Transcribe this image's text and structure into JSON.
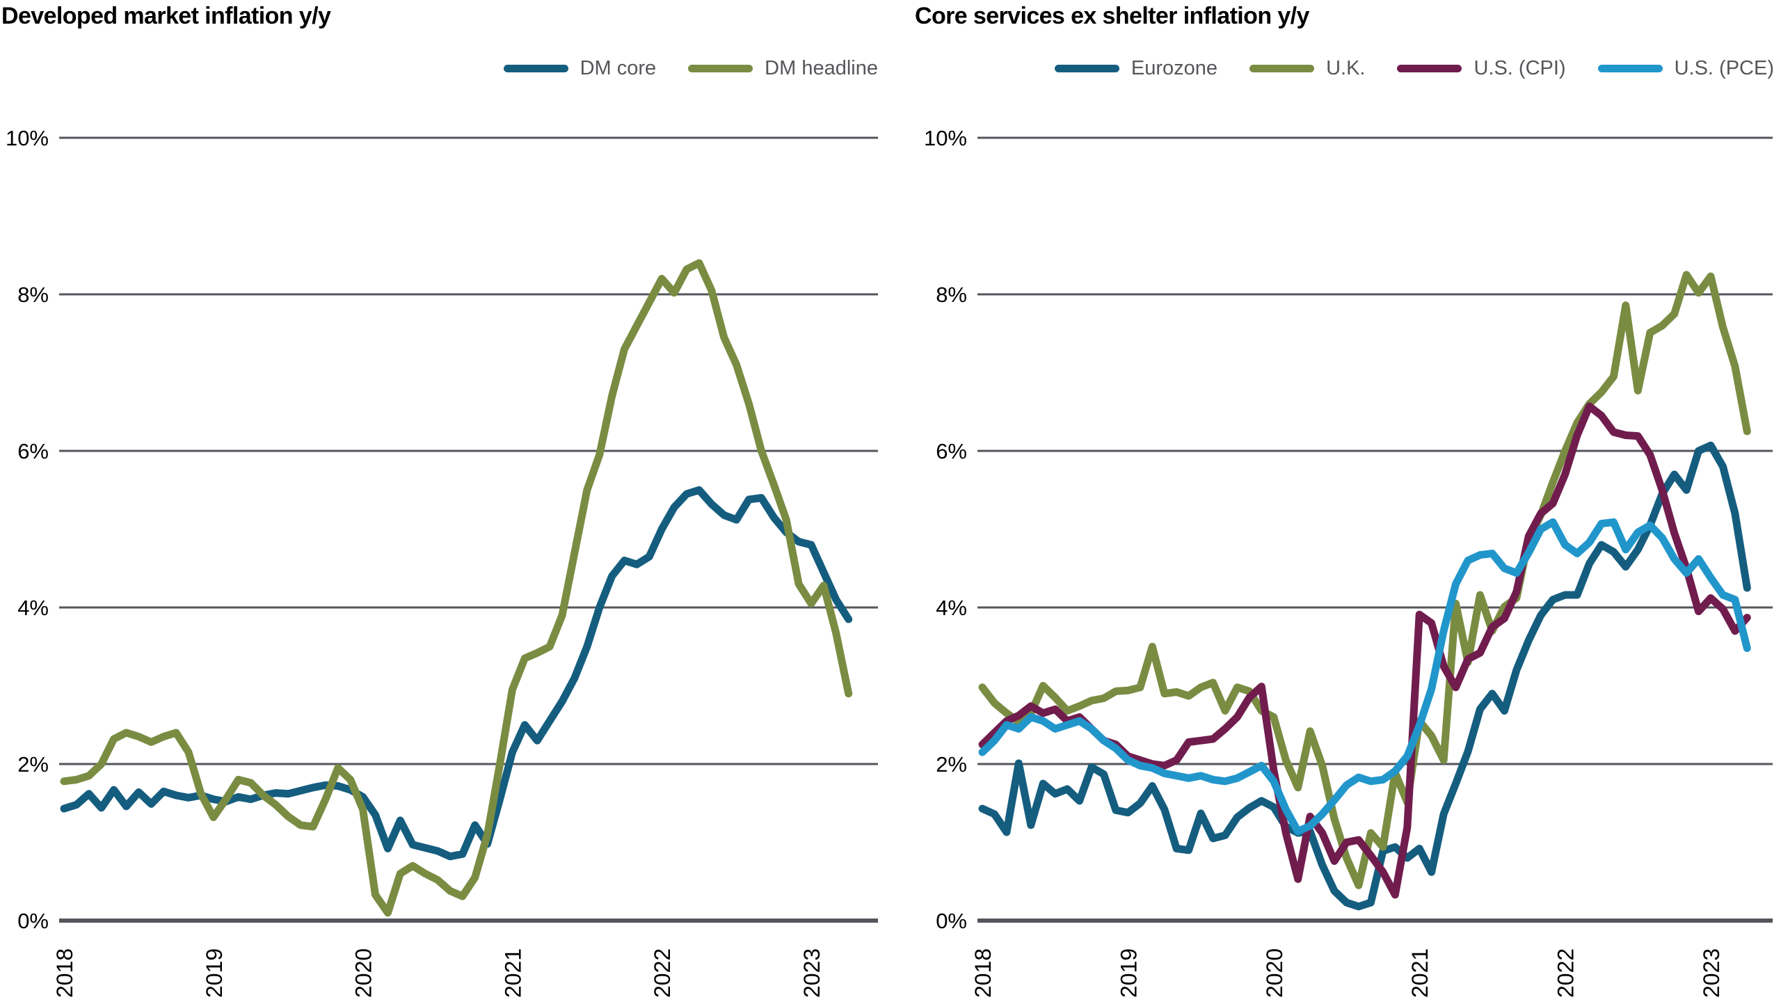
{
  "page_background": "#ffffff",
  "grid_color": "#54565c",
  "text_color": "#000000",
  "legend_text_color": "#54565a",
  "chart_data": [
    {
      "type": "line",
      "title": "Developed market inflation y/y",
      "frequency": "monthly",
      "x_start": "2018-01",
      "x_end": "2023-04",
      "xlabel": "",
      "ylabel": "",
      "ylim": [
        0,
        10
      ],
      "grid": "horizontal",
      "legend_position": "top-right",
      "y_ticks": [
        {
          "value": 0,
          "label": "0%"
        },
        {
          "value": 2,
          "label": "2%"
        },
        {
          "value": 4,
          "label": "4%"
        },
        {
          "value": 6,
          "label": "6%"
        },
        {
          "value": 8,
          "label": "8%"
        },
        {
          "value": 10,
          "label": "10%"
        }
      ],
      "x_ticks": [
        "2018",
        "2019",
        "2020",
        "2021",
        "2022",
        "2023"
      ],
      "series": [
        {
          "name": "DM core",
          "color": "#155d7f",
          "values": [
            1.43,
            1.48,
            1.62,
            1.44,
            1.67,
            1.46,
            1.64,
            1.49,
            1.65,
            1.6,
            1.57,
            1.6,
            1.55,
            1.52,
            1.58,
            1.55,
            1.6,
            1.63,
            1.62,
            1.66,
            1.7,
            1.73,
            1.72,
            1.67,
            1.58,
            1.35,
            0.92,
            1.28,
            0.97,
            0.93,
            0.89,
            0.82,
            0.85,
            1.22,
            0.98,
            1.55,
            2.15,
            2.5,
            2.3,
            2.55,
            2.8,
            3.1,
            3.5,
            4.0,
            4.4,
            4.6,
            4.55,
            4.65,
            5.0,
            5.28,
            5.45,
            5.5,
            5.32,
            5.18,
            5.12,
            5.38,
            5.4,
            5.15,
            4.96,
            4.84,
            4.8,
            4.45,
            4.1,
            3.85
          ]
        },
        {
          "name": "DM headline",
          "color": "#7a8c42",
          "values": [
            1.78,
            1.8,
            1.85,
            2.0,
            2.32,
            2.4,
            2.35,
            2.28,
            2.35,
            2.4,
            2.15,
            1.62,
            1.32,
            1.55,
            1.8,
            1.76,
            1.6,
            1.48,
            1.33,
            1.22,
            1.2,
            1.55,
            1.95,
            1.8,
            1.42,
            0.33,
            0.1,
            0.6,
            0.7,
            0.6,
            0.52,
            0.38,
            0.31,
            0.55,
            1.1,
            2.0,
            2.95,
            3.35,
            3.42,
            3.5,
            3.9,
            4.7,
            5.5,
            5.95,
            6.7,
            7.3,
            7.6,
            7.9,
            8.2,
            8.02,
            8.32,
            8.4,
            8.05,
            7.45,
            7.1,
            6.6,
            6.0,
            5.57,
            5.12,
            4.3,
            4.05,
            4.28,
            3.67,
            2.9
          ]
        }
      ]
    },
    {
      "type": "line",
      "title": "Core services ex shelter inflation y/y",
      "frequency": "monthly",
      "x_start": "2018-01",
      "x_end": "2023-04",
      "xlabel": "",
      "ylabel": "",
      "ylim": [
        0,
        10
      ],
      "grid": "horizontal",
      "legend_position": "top-right",
      "y_ticks": [
        {
          "value": 0,
          "label": "0%"
        },
        {
          "value": 2,
          "label": "2%"
        },
        {
          "value": 4,
          "label": "4%"
        },
        {
          "value": 6,
          "label": "6%"
        },
        {
          "value": 8,
          "label": "8%"
        },
        {
          "value": 10,
          "label": "10%"
        }
      ],
      "x_ticks": [
        "2018",
        "2019",
        "2020",
        "2021",
        "2022",
        "2023"
      ],
      "series": [
        {
          "name": "Eurozone",
          "color": "#155d7f",
          "values": [
            1.43,
            1.36,
            1.13,
            2.01,
            1.22,
            1.75,
            1.62,
            1.68,
            1.53,
            1.96,
            1.87,
            1.41,
            1.38,
            1.5,
            1.72,
            1.42,
            0.92,
            0.9,
            1.37,
            1.05,
            1.09,
            1.32,
            1.44,
            1.53,
            1.45,
            1.2,
            1.12,
            1.14,
            0.71,
            0.38,
            0.23,
            0.18,
            0.23,
            0.89,
            0.94,
            0.8,
            0.92,
            0.62,
            1.36,
            1.75,
            2.16,
            2.7,
            2.9,
            2.68,
            3.2,
            3.58,
            3.9,
            4.1,
            4.16,
            4.16,
            4.56,
            4.8,
            4.71,
            4.52,
            4.74,
            5.05,
            5.45,
            5.7,
            5.5,
            6.0,
            6.07,
            5.8,
            5.2,
            4.25
          ]
        },
        {
          "name": "U.K.",
          "color": "#7a8c42",
          "values": [
            2.98,
            2.78,
            2.65,
            2.54,
            2.65,
            3.0,
            2.85,
            2.68,
            2.74,
            2.81,
            2.84,
            2.93,
            2.94,
            2.98,
            3.5,
            2.9,
            2.92,
            2.87,
            2.98,
            3.04,
            2.68,
            2.98,
            2.93,
            2.68,
            2.6,
            2.05,
            1.7,
            2.42,
            1.98,
            1.3,
            0.8,
            0.45,
            1.12,
            0.94,
            1.89,
            1.51,
            2.55,
            2.36,
            2.05,
            4.05,
            3.3,
            4.16,
            3.7,
            4.01,
            4.12,
            4.87,
            5.18,
            5.6,
            6.0,
            6.36,
            6.6,
            6.75,
            6.95,
            7.86,
            6.77,
            7.51,
            7.6,
            7.75,
            8.25,
            8.02,
            8.23,
            7.58,
            7.08,
            6.25
          ]
        },
        {
          "name": "U.S. (CPI)",
          "color": "#701d4e",
          "values": [
            2.25,
            2.4,
            2.55,
            2.62,
            2.74,
            2.65,
            2.7,
            2.55,
            2.6,
            2.45,
            2.3,
            2.25,
            2.1,
            2.05,
            2.0,
            1.98,
            2.05,
            2.28,
            2.3,
            2.32,
            2.45,
            2.6,
            2.85,
            2.99,
            1.92,
            1.12,
            0.53,
            1.33,
            1.12,
            0.76,
            1.0,
            1.03,
            0.83,
            0.62,
            0.33,
            1.19,
            3.91,
            3.8,
            3.25,
            2.98,
            3.34,
            3.42,
            3.75,
            3.86,
            4.2,
            4.91,
            5.2,
            5.33,
            5.7,
            6.2,
            6.57,
            6.45,
            6.24,
            6.2,
            6.19,
            5.95,
            5.5,
            4.95,
            4.5,
            3.95,
            4.12,
            3.98,
            3.7,
            3.87
          ]
        },
        {
          "name": "U.S. (PCE)",
          "color": "#2196cb",
          "values": [
            2.15,
            2.3,
            2.5,
            2.45,
            2.6,
            2.55,
            2.45,
            2.5,
            2.55,
            2.45,
            2.3,
            2.2,
            2.05,
            1.98,
            1.95,
            1.88,
            1.85,
            1.82,
            1.85,
            1.8,
            1.78,
            1.82,
            1.9,
            1.98,
            1.78,
            1.42,
            1.14,
            1.21,
            1.36,
            1.54,
            1.73,
            1.83,
            1.78,
            1.8,
            1.91,
            2.1,
            2.49,
            2.96,
            3.7,
            4.3,
            4.6,
            4.67,
            4.69,
            4.5,
            4.44,
            4.7,
            5.0,
            5.09,
            4.8,
            4.69,
            4.83,
            5.07,
            5.09,
            4.74,
            4.96,
            5.05,
            4.89,
            4.62,
            4.44,
            4.62,
            4.38,
            4.16,
            4.1,
            3.48
          ]
        }
      ]
    }
  ]
}
